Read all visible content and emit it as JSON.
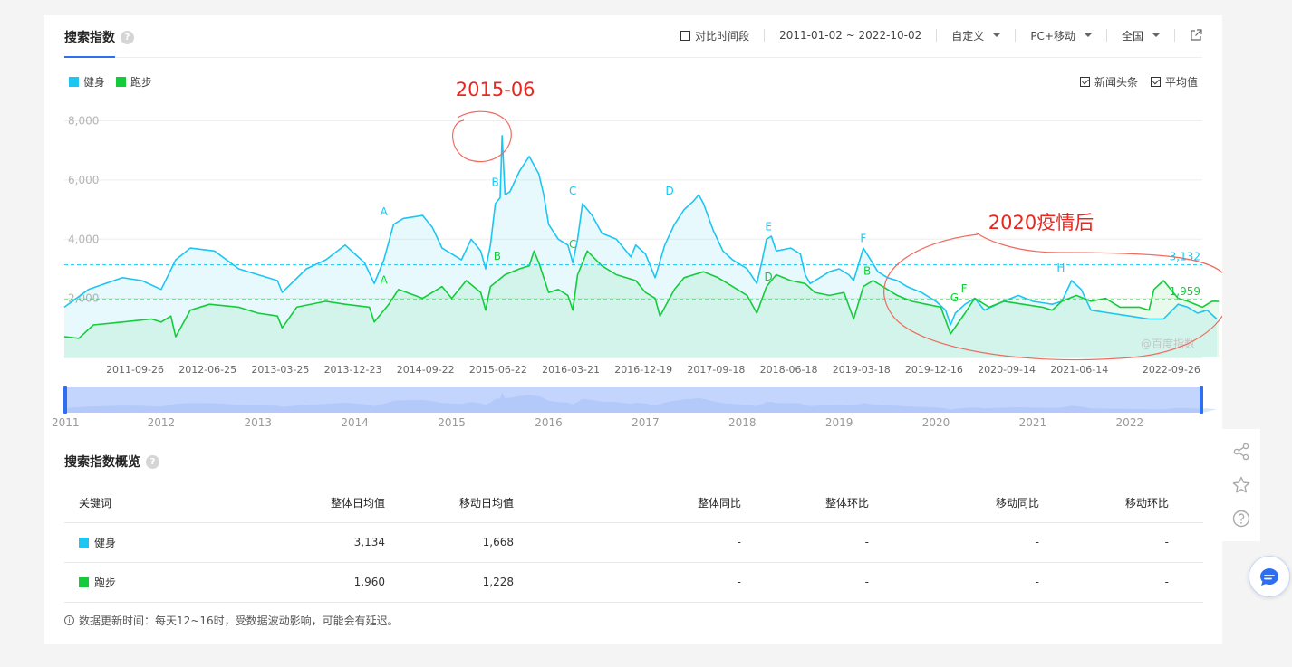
{
  "header": {
    "title": "搜索指数",
    "compare_label": "对比时间段",
    "date_range": "2011-01-02 ~ 2022-10-02",
    "custom_label": "自定义",
    "device_label": "PC+移动",
    "region_label": "全国"
  },
  "legend": {
    "items": [
      {
        "label": "健身",
        "color": "#1cc6f1"
      },
      {
        "label": "跑步",
        "color": "#14cc3a"
      }
    ]
  },
  "options": {
    "news_label": "新闻头条",
    "avg_label": "平均值"
  },
  "chart_data": {
    "type": "line",
    "x_tick_labels": [
      "2011-09-26",
      "2012-06-25",
      "2013-03-25",
      "2013-12-23",
      "2014-09-22",
      "2015-06-22",
      "2016-03-21",
      "2016-12-19",
      "2017-09-18",
      "2018-06-18",
      "2019-03-18",
      "2019-12-16",
      "2020-09-14",
      "2021-06-14",
      "2022-09-26"
    ],
    "y_ticks": [
      "8,000",
      "6,000",
      "4,000",
      "2,000"
    ],
    "ylim": [
      0,
      8200
    ],
    "grid": true,
    "watermark": "@百度指数",
    "series": [
      {
        "name": "健身",
        "color": "#1cc6f1",
        "average": 3132,
        "average_label": "3,132",
        "points": [
          [
            2011.0,
            1700
          ],
          [
            2011.25,
            2300
          ],
          [
            2011.6,
            2700
          ],
          [
            2011.8,
            2600
          ],
          [
            2012.0,
            2300
          ],
          [
            2012.15,
            3300
          ],
          [
            2012.3,
            3700
          ],
          [
            2012.55,
            3600
          ],
          [
            2012.8,
            3000
          ],
          [
            2013.0,
            2800
          ],
          [
            2013.2,
            2600
          ],
          [
            2013.25,
            2200
          ],
          [
            2013.5,
            3000
          ],
          [
            2013.7,
            3300
          ],
          [
            2013.9,
            3800
          ],
          [
            2014.1,
            3200
          ],
          [
            2014.2,
            2500
          ],
          [
            2014.3,
            3300
          ],
          [
            2014.4,
            4500
          ],
          [
            2014.5,
            4700
          ],
          [
            2014.7,
            4800
          ],
          [
            2014.8,
            4400
          ],
          [
            2014.9,
            3700
          ],
          [
            2015.0,
            3500
          ],
          [
            2015.1,
            3300
          ],
          [
            2015.2,
            4000
          ],
          [
            2015.3,
            3600
          ],
          [
            2015.35,
            3000
          ],
          [
            2015.4,
            3800
          ],
          [
            2015.45,
            5200
          ],
          [
            2015.5,
            5400
          ],
          [
            2015.52,
            7500
          ],
          [
            2015.55,
            5500
          ],
          [
            2015.6,
            5600
          ],
          [
            2015.7,
            6300
          ],
          [
            2015.8,
            6800
          ],
          [
            2015.9,
            6200
          ],
          [
            2015.95,
            5500
          ],
          [
            2016.0,
            4500
          ],
          [
            2016.1,
            4000
          ],
          [
            2016.2,
            3800
          ],
          [
            2016.25,
            3200
          ],
          [
            2016.3,
            4000
          ],
          [
            2016.35,
            5200
          ],
          [
            2016.45,
            4800
          ],
          [
            2016.55,
            4200
          ],
          [
            2016.7,
            4000
          ],
          [
            2016.8,
            3600
          ],
          [
            2016.85,
            3400
          ],
          [
            2016.9,
            3800
          ],
          [
            2017.0,
            3500
          ],
          [
            2017.1,
            2700
          ],
          [
            2017.2,
            3800
          ],
          [
            2017.3,
            4500
          ],
          [
            2017.4,
            5000
          ],
          [
            2017.5,
            5300
          ],
          [
            2017.55,
            5500
          ],
          [
            2017.6,
            5200
          ],
          [
            2017.7,
            4300
          ],
          [
            2017.8,
            3600
          ],
          [
            2017.9,
            3300
          ],
          [
            2018.05,
            3000
          ],
          [
            2018.15,
            2500
          ],
          [
            2018.2,
            3200
          ],
          [
            2018.25,
            4000
          ],
          [
            2018.3,
            4100
          ],
          [
            2018.35,
            3600
          ],
          [
            2018.5,
            3700
          ],
          [
            2018.6,
            3500
          ],
          [
            2018.65,
            2800
          ],
          [
            2018.7,
            2500
          ],
          [
            2018.8,
            2700
          ],
          [
            2018.9,
            2900
          ],
          [
            2019.0,
            3000
          ],
          [
            2019.1,
            2800
          ],
          [
            2019.15,
            2600
          ],
          [
            2019.25,
            3700
          ],
          [
            2019.4,
            2900
          ],
          [
            2019.5,
            2700
          ],
          [
            2019.6,
            2600
          ],
          [
            2019.7,
            2400
          ],
          [
            2019.85,
            2200
          ],
          [
            2020.0,
            1900
          ],
          [
            2020.1,
            1600
          ],
          [
            2020.15,
            1100
          ],
          [
            2020.2,
            1500
          ],
          [
            2020.3,
            1800
          ],
          [
            2020.4,
            2000
          ],
          [
            2020.5,
            1600
          ],
          [
            2020.7,
            1900
          ],
          [
            2020.85,
            2100
          ],
          [
            2021.0,
            1900
          ],
          [
            2021.2,
            1800
          ],
          [
            2021.3,
            1900
          ],
          [
            2021.4,
            2600
          ],
          [
            2021.5,
            2300
          ],
          [
            2021.6,
            1600
          ],
          [
            2021.8,
            1500
          ],
          [
            2022.0,
            1400
          ],
          [
            2022.2,
            1300
          ],
          [
            2022.35,
            1300
          ],
          [
            2022.5,
            1800
          ],
          [
            2022.6,
            1700
          ],
          [
            2022.7,
            1500
          ],
          [
            2022.8,
            1600
          ],
          [
            2022.9,
            1300
          ]
        ]
      },
      {
        "name": "跑步",
        "color": "#14cc3a",
        "average": 1959,
        "average_label": "1,959",
        "points": [
          [
            2011.0,
            700
          ],
          [
            2011.15,
            650
          ],
          [
            2011.3,
            1100
          ],
          [
            2011.6,
            1200
          ],
          [
            2011.9,
            1300
          ],
          [
            2012.0,
            1200
          ],
          [
            2012.1,
            1400
          ],
          [
            2012.15,
            700
          ],
          [
            2012.3,
            1600
          ],
          [
            2012.5,
            1800
          ],
          [
            2012.8,
            1700
          ],
          [
            2013.0,
            1500
          ],
          [
            2013.2,
            1400
          ],
          [
            2013.25,
            1000
          ],
          [
            2013.4,
            1700
          ],
          [
            2013.7,
            1900
          ],
          [
            2013.9,
            1800
          ],
          [
            2014.15,
            1700
          ],
          [
            2014.2,
            1200
          ],
          [
            2014.35,
            1800
          ],
          [
            2014.45,
            2300
          ],
          [
            2014.7,
            2000
          ],
          [
            2014.9,
            2400
          ],
          [
            2015.0,
            2000
          ],
          [
            2015.15,
            2600
          ],
          [
            2015.3,
            2200
          ],
          [
            2015.35,
            1600
          ],
          [
            2015.4,
            2400
          ],
          [
            2015.55,
            2800
          ],
          [
            2015.7,
            3000
          ],
          [
            2015.8,
            3100
          ],
          [
            2015.85,
            3600
          ],
          [
            2015.9,
            3200
          ],
          [
            2016.0,
            2200
          ],
          [
            2016.1,
            2300
          ],
          [
            2016.2,
            2100
          ],
          [
            2016.25,
            1600
          ],
          [
            2016.3,
            2800
          ],
          [
            2016.4,
            3600
          ],
          [
            2016.55,
            3100
          ],
          [
            2016.7,
            2800
          ],
          [
            2016.9,
            2600
          ],
          [
            2017.0,
            2200
          ],
          [
            2017.1,
            2000
          ],
          [
            2017.15,
            1400
          ],
          [
            2017.3,
            2300
          ],
          [
            2017.4,
            2700
          ],
          [
            2017.6,
            2900
          ],
          [
            2017.75,
            2700
          ],
          [
            2017.9,
            2400
          ],
          [
            2018.05,
            2100
          ],
          [
            2018.15,
            1500
          ],
          [
            2018.25,
            2400
          ],
          [
            2018.35,
            2800
          ],
          [
            2018.5,
            2600
          ],
          [
            2018.65,
            2500
          ],
          [
            2018.75,
            2200
          ],
          [
            2018.9,
            2100
          ],
          [
            2019.05,
            2200
          ],
          [
            2019.15,
            1300
          ],
          [
            2019.25,
            2400
          ],
          [
            2019.35,
            2600
          ],
          [
            2019.5,
            2300
          ],
          [
            2019.6,
            2100
          ],
          [
            2019.75,
            1900
          ],
          [
            2019.9,
            1800
          ],
          [
            2020.05,
            1700
          ],
          [
            2020.15,
            800
          ],
          [
            2020.3,
            1500
          ],
          [
            2020.4,
            2000
          ],
          [
            2020.55,
            1700
          ],
          [
            2020.7,
            1900
          ],
          [
            2020.9,
            1800
          ],
          [
            2021.1,
            1700
          ],
          [
            2021.2,
            1600
          ],
          [
            2021.3,
            1900
          ],
          [
            2021.45,
            2100
          ],
          [
            2021.6,
            1900
          ],
          [
            2021.75,
            2000
          ],
          [
            2021.9,
            1700
          ],
          [
            2022.1,
            1700
          ],
          [
            2022.2,
            1600
          ],
          [
            2022.25,
            2300
          ],
          [
            2022.35,
            2600
          ],
          [
            2022.5,
            2000
          ],
          [
            2022.6,
            1900
          ],
          [
            2022.75,
            1700
          ],
          [
            2022.85,
            1900
          ],
          [
            2022.92,
            1900
          ]
        ]
      }
    ],
    "event_markers": [
      {
        "label": "A",
        "series": "健身",
        "x": 2014.3,
        "y": 4800
      },
      {
        "label": "B",
        "series": "健身",
        "x": 2015.45,
        "y": 5800
      },
      {
        "label": "C",
        "series": "健身",
        "x": 2016.25,
        "y": 5500
      },
      {
        "label": "D",
        "series": "健身",
        "x": 2017.25,
        "y": 5500
      },
      {
        "label": "E",
        "series": "健身",
        "x": 2018.27,
        "y": 4300
      },
      {
        "label": "F",
        "series": "健身",
        "x": 2019.25,
        "y": 3900
      },
      {
        "label": "H",
        "series": "健身",
        "x": 2021.29,
        "y": 2900
      },
      {
        "label": "A",
        "series": "跑步",
        "x": 2014.3,
        "y": 2500
      },
      {
        "label": "B",
        "series": "跑步",
        "x": 2015.47,
        "y": 3300
      },
      {
        "label": "C",
        "series": "跑步",
        "x": 2016.25,
        "y": 3700
      },
      {
        "label": "D",
        "series": "跑步",
        "x": 2018.27,
        "y": 2600
      },
      {
        "label": "B",
        "series": "跑步",
        "x": 2019.29,
        "y": 2800
      },
      {
        "label": "G",
        "series": "跑步",
        "x": 2020.19,
        "y": 1900
      },
      {
        "label": "F",
        "series": "跑步",
        "x": 2020.29,
        "y": 2200
      }
    ],
    "annotations": [
      {
        "text": "2015-06",
        "color": "#e8271f"
      },
      {
        "text": "2020疫情后",
        "color": "#e8271f"
      }
    ],
    "slider": {
      "year_labels": [
        "2011",
        "2012",
        "2013",
        "2014",
        "2015",
        "2016",
        "2017",
        "2018",
        "2019",
        "2020",
        "2021",
        "2022"
      ]
    }
  },
  "overview": {
    "title": "搜索指数概览",
    "headers": [
      "关键词",
      "整体日均值",
      "移动日均值",
      "整体同比",
      "整体环比",
      "移动同比",
      "移动环比"
    ],
    "rows": [
      {
        "keyword": "健身",
        "color": "#1cc6f1",
        "overall_avg": "3,134",
        "mobile_avg": "1,668",
        "overall_yoy": "-",
        "overall_mom": "-",
        "mobile_yoy": "-",
        "mobile_mom": "-"
      },
      {
        "keyword": "跑步",
        "color": "#14cc3a",
        "overall_avg": "1,960",
        "mobile_avg": "1,228",
        "overall_yoy": "-",
        "overall_mom": "-",
        "mobile_yoy": "-",
        "mobile_mom": "-"
      }
    ]
  },
  "footer": {
    "note": "数据更新时间：每天12~16时，受数据波动影响，可能会有延迟。"
  }
}
